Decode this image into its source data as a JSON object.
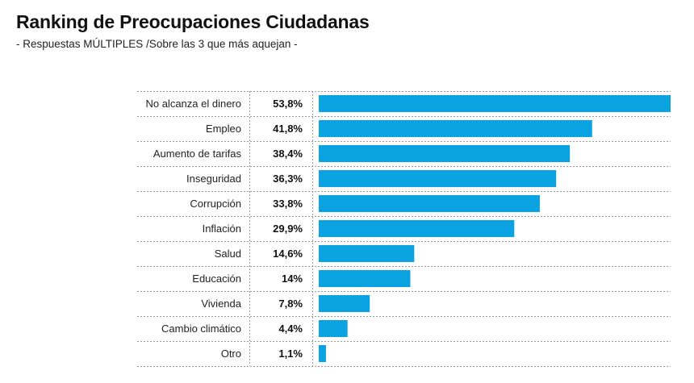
{
  "chart_data": {
    "type": "bar",
    "orientation": "horizontal",
    "title": "Ranking de Preocupaciones Ciudadanas",
    "subtitle": "- Respuestas MÚLTIPLES  /Sobre las 3 que más aquejan -",
    "categories": [
      "No alcanza el dinero",
      "Empleo",
      "Aumento de tarifas",
      "Inseguridad",
      "Corrupción",
      "Inflación",
      "Salud",
      "Educación",
      "Vivienda",
      "Cambio climático",
      "Otro"
    ],
    "values": [
      53.8,
      41.8,
      38.4,
      36.3,
      33.8,
      29.9,
      14.6,
      14,
      7.8,
      4.4,
      1.1
    ],
    "value_labels": [
      "53,8%",
      "41,8%",
      "38,4%",
      "36,3%",
      "33,8%",
      "29,9%",
      "14,6%",
      "14%",
      "7,8%",
      "4,4%",
      "1,1%"
    ],
    "bar_color": "#0aa2e0",
    "xlim": [
      0,
      53.8
    ],
    "grid": false,
    "legend": "none"
  }
}
